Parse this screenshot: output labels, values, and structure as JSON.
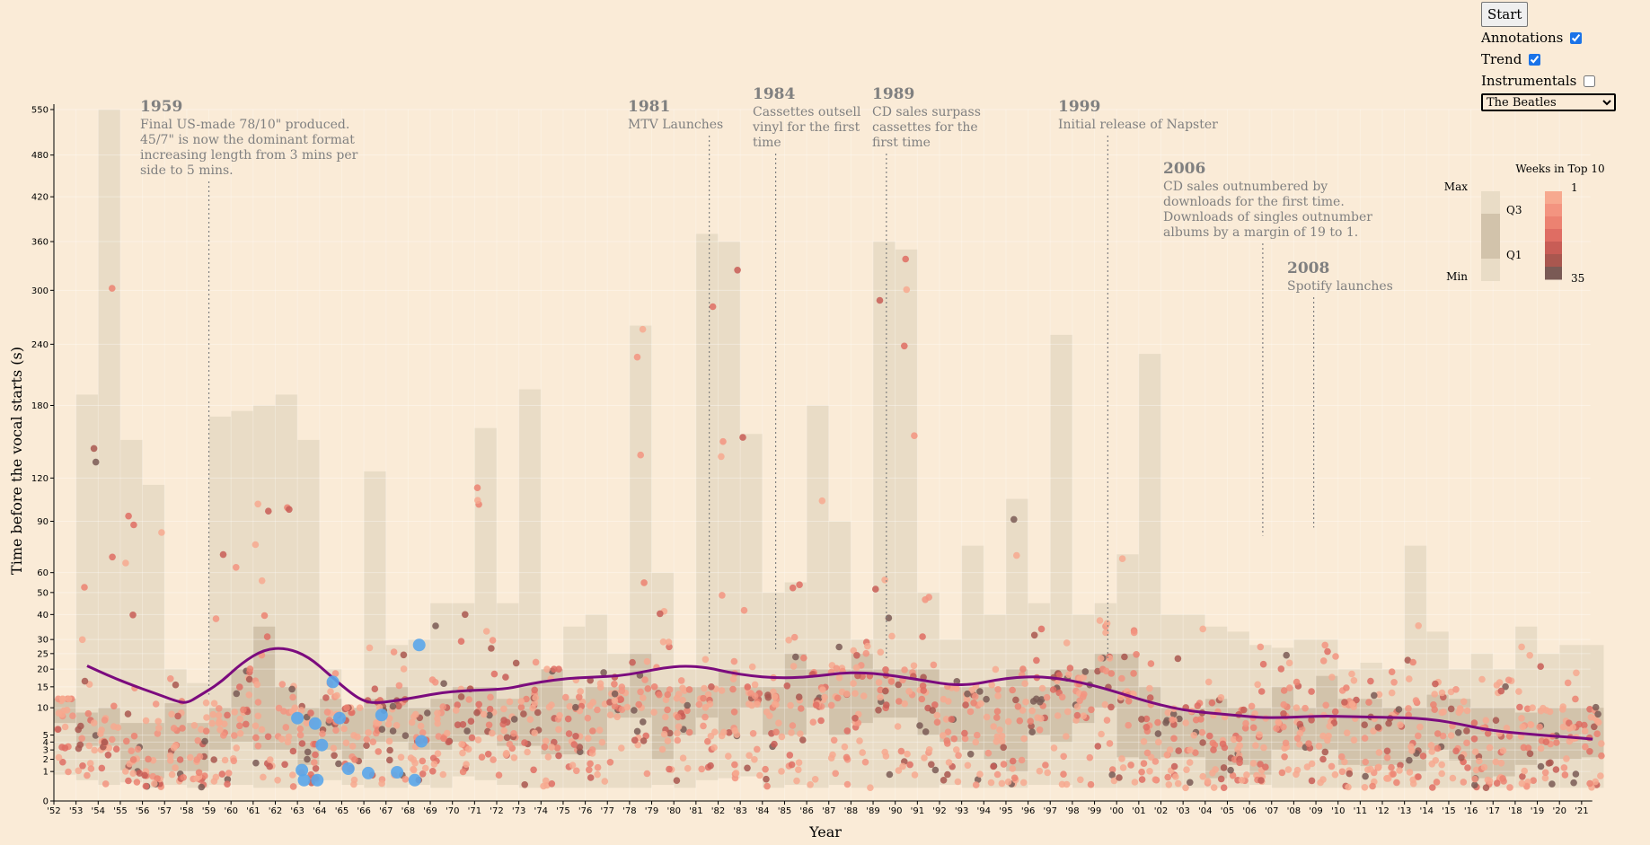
{
  "controls": {
    "start_label": "Start",
    "annotations_label": "Annotations",
    "annotations_checked": true,
    "trend_label": "Trend",
    "trend_checked": true,
    "instrumentals_label": "Instrumentals",
    "instrumentals_checked": false,
    "artist_selected": "The Beatles"
  },
  "chart_data": {
    "type": "scatter",
    "xlabel": "Year",
    "ylabel": "Time before the vocal starts (s)",
    "y_scale": "sqrt",
    "ylim": [
      0,
      550
    ],
    "xlim": [
      1952,
      2022
    ],
    "x_tick_labels": [
      "'52",
      "'53",
      "'54",
      "'55",
      "'56",
      "'57",
      "'58",
      "'59",
      "'60",
      "'61",
      "'62",
      "'63",
      "'64",
      "'65",
      "'66",
      "'67",
      "'68",
      "'69",
      "'70",
      "'71",
      "'72",
      "'73",
      "'74",
      "'75",
      "'76",
      "'77",
      "'78",
      "'79",
      "'80",
      "'81",
      "'82",
      "'83",
      "'84",
      "'85",
      "'86",
      "'87",
      "'88",
      "'89",
      "'90",
      "'91",
      "'92",
      "'93",
      "'94",
      "'95",
      "'96",
      "'97",
      "'98",
      "'99",
      "'00",
      "'01",
      "'02",
      "'03",
      "'04",
      "'05",
      "'06",
      "'07",
      "'08",
      "'09",
      "'10",
      "'11",
      "'12",
      "'13",
      "'14",
      "'15",
      "'16",
      "'17",
      "'18",
      "'19",
      "'20",
      "'21"
    ],
    "y_ticks": [
      0,
      1,
      2,
      3,
      4,
      5,
      10,
      15,
      20,
      25,
      30,
      40,
      50,
      60,
      90,
      120,
      180,
      240,
      300,
      360,
      420,
      480,
      550
    ],
    "colors": {
      "box_range": "#e9dcc6",
      "box_iqr": "#d2c3ab",
      "trend": "#7b0b7e",
      "point_light": "#f4a582",
      "point_mid": "#e35f4c",
      "point_dark": "#8c4b4b",
      "highlight": "#5aa6ea"
    },
    "boxes": [
      {
        "year": 1952,
        "min": 0.8,
        "q1": 7,
        "q3": 12,
        "max": 12
      },
      {
        "year": 1953,
        "min": 0.5,
        "q1": 3.5,
        "q3": 9,
        "max": 190
      },
      {
        "year": 1954,
        "min": 0.3,
        "q1": 3.5,
        "q3": 10,
        "max": 550
      },
      {
        "year": 1955,
        "min": 0.4,
        "q1": 1.1,
        "q3": 7,
        "max": 150
      },
      {
        "year": 1956,
        "min": 0.2,
        "q1": 0.6,
        "q3": 7,
        "max": 115
      },
      {
        "year": 1957,
        "min": 0.3,
        "q1": 1,
        "q3": 11,
        "max": 20
      },
      {
        "year": 1958,
        "min": 0.2,
        "q1": 1,
        "q3": 7,
        "max": 16
      },
      {
        "year": 1959,
        "min": 0.3,
        "q1": 3,
        "q3": 10,
        "max": 170
      },
      {
        "year": 1960,
        "min": 0.3,
        "q1": 4,
        "q3": 20,
        "max": 175
      },
      {
        "year": 1961,
        "min": 0.2,
        "q1": 3,
        "q3": 35,
        "max": 180
      },
      {
        "year": 1962,
        "min": 0.2,
        "q1": 3,
        "q3": 15,
        "max": 190
      },
      {
        "year": 1963,
        "min": 0.3,
        "q1": 1.5,
        "q3": 10,
        "max": 150
      },
      {
        "year": 1964,
        "min": 0.5,
        "q1": 3,
        "q3": 12,
        "max": 20
      },
      {
        "year": 1965,
        "min": 0.3,
        "q1": 2,
        "q3": 10,
        "max": 10
      },
      {
        "year": 1966,
        "min": 0.2,
        "q1": 4,
        "q3": 12,
        "max": 125
      },
      {
        "year": 1967,
        "min": 0.2,
        "q1": 4,
        "q3": 15,
        "max": 28
      },
      {
        "year": 1968,
        "min": 0.3,
        "q1": 3,
        "q3": 10,
        "max": 30
      },
      {
        "year": 1969,
        "min": 0.2,
        "q1": 3,
        "q3": 12,
        "max": 45
      },
      {
        "year": 1970,
        "min": 0.7,
        "q1": 4,
        "q3": 15,
        "max": 45
      },
      {
        "year": 1971,
        "min": 0.5,
        "q1": 5,
        "q3": 15,
        "max": 160
      },
      {
        "year": 1972,
        "min": 0.3,
        "q1": 3.5,
        "q3": 12,
        "max": 45
      },
      {
        "year": 1973,
        "min": 0.2,
        "q1": 3.5,
        "q3": 16,
        "max": 195
      },
      {
        "year": 1974,
        "min": 0.2,
        "q1": 2.5,
        "q3": 20,
        "max": 20
      },
      {
        "year": 1975,
        "min": 0.2,
        "q1": 2.5,
        "q3": 12,
        "max": 35
      },
      {
        "year": 1976,
        "min": 0.2,
        "q1": 3,
        "q3": 15,
        "max": 40
      },
      {
        "year": 1977,
        "min": 0.2,
        "q1": 8,
        "q3": 15,
        "max": 25
      },
      {
        "year": 1978,
        "min": 0.2,
        "q1": 8,
        "q3": 25,
        "max": 260
      },
      {
        "year": 1979,
        "min": 0.3,
        "q1": 2,
        "q3": 15,
        "max": 60
      },
      {
        "year": 1980,
        "min": 0.2,
        "q1": 5,
        "q3": 15,
        "max": 20
      },
      {
        "year": 1981,
        "min": 0.5,
        "q1": 8,
        "q3": 15,
        "max": 370
      },
      {
        "year": 1982,
        "min": 0.6,
        "q1": 5,
        "q3": 20,
        "max": 360
      },
      {
        "year": 1983,
        "min": 0.7,
        "q1": 10,
        "q3": 15,
        "max": 155
      },
      {
        "year": 1984,
        "min": 0.2,
        "q1": 5,
        "q3": 15,
        "max": 50
      },
      {
        "year": 1985,
        "min": 0.3,
        "q1": 5,
        "q3": 25,
        "max": 55
      },
      {
        "year": 1986,
        "min": 0.2,
        "q1": 10,
        "q3": 20,
        "max": 180
      },
      {
        "year": 1987,
        "min": 0.3,
        "q1": 5,
        "q3": 20,
        "max": 90
      },
      {
        "year": 1988,
        "min": 0.2,
        "q1": 7,
        "q3": 25,
        "max": 30
      },
      {
        "year": 1989,
        "min": 0.2,
        "q1": 8,
        "q3": 20,
        "max": 360
      },
      {
        "year": 1990,
        "min": 0.2,
        "q1": 8,
        "q3": 20,
        "max": 350
      },
      {
        "year": 1991,
        "min": 0.2,
        "q1": 5,
        "q3": 20,
        "max": 50
      },
      {
        "year": 1992,
        "min": 0.3,
        "q1": 4,
        "q3": 15,
        "max": 30
      },
      {
        "year": 1993,
        "min": 0.2,
        "q1": 3,
        "q3": 15,
        "max": 75
      },
      {
        "year": 1994,
        "min": 0.2,
        "q1": 2,
        "q3": 15,
        "max": 40
      },
      {
        "year": 1995,
        "min": 0.2,
        "q1": 1,
        "q3": 20,
        "max": 105
      },
      {
        "year": 1996,
        "min": 0.3,
        "q1": 5,
        "q3": 15,
        "max": 45
      },
      {
        "year": 1997,
        "min": 0.3,
        "q1": 4,
        "q3": 20,
        "max": 250
      },
      {
        "year": 1998,
        "min": 0.2,
        "q1": 7,
        "q3": 20,
        "max": 40
      },
      {
        "year": 1999,
        "min": 0.2,
        "q1": 10,
        "q3": 25,
        "max": 45
      },
      {
        "year": 2000,
        "min": 0.2,
        "q1": 2.2,
        "q3": 25,
        "max": 70
      },
      {
        "year": 2001,
        "min": 0.2,
        "q1": 2,
        "q3": 15,
        "max": 230
      },
      {
        "year": 2002,
        "min": 0.2,
        "q1": 2.2,
        "q3": 10,
        "max": 40
      },
      {
        "year": 2003,
        "min": 0.2,
        "q1": 2.2,
        "q3": 10,
        "max": 40
      },
      {
        "year": 2004,
        "min": 0.2,
        "q1": 0.6,
        "q3": 12,
        "max": 35
      },
      {
        "year": 2005,
        "min": 0.2,
        "q1": 1.5,
        "q3": 10,
        "max": 33
      },
      {
        "year": 2006,
        "min": 0.3,
        "q1": 0.8,
        "q3": 10,
        "max": 28
      },
      {
        "year": 2007,
        "min": 0.2,
        "q1": 3,
        "q3": 15,
        "max": 27
      },
      {
        "year": 2008,
        "min": 0.2,
        "q1": 3,
        "q3": 10,
        "max": 30
      },
      {
        "year": 2009,
        "min": 0.2,
        "q1": 3,
        "q3": 18,
        "max": 30
      },
      {
        "year": 2010,
        "min": 0.2,
        "q1": 1.5,
        "q3": 12,
        "max": 20
      },
      {
        "year": 2011,
        "min": 0.2,
        "q1": 1.4,
        "q3": 12,
        "max": 22
      },
      {
        "year": 2012,
        "min": 0.2,
        "q1": 1.5,
        "q3": 10,
        "max": 20
      },
      {
        "year": 2013,
        "min": 0.2,
        "q1": 1,
        "q3": 10,
        "max": 75
      },
      {
        "year": 2014,
        "min": 0.2,
        "q1": 3,
        "q3": 13,
        "max": 33
      },
      {
        "year": 2015,
        "min": 0.2,
        "q1": 1.9,
        "q3": 12,
        "max": 20
      },
      {
        "year": 2016,
        "min": 0.2,
        "q1": 0.6,
        "q3": 10,
        "max": 25
      },
      {
        "year": 2017,
        "min": 0.2,
        "q1": 0.7,
        "q3": 10,
        "max": 20
      },
      {
        "year": 2018,
        "min": 0.2,
        "q1": 1.5,
        "q3": 9,
        "max": 35
      },
      {
        "year": 2019,
        "min": 0.2,
        "q1": 2,
        "q3": 10,
        "max": 25
      },
      {
        "year": 2020,
        "min": 0.2,
        "q1": 2,
        "q3": 10,
        "max": 28
      },
      {
        "year": 2021,
        "min": 0.2,
        "q1": 2.2,
        "q3": 10,
        "max": 28
      }
    ],
    "trend": [
      [
        1953,
        21
      ],
      [
        1954,
        18
      ],
      [
        1955,
        15.5
      ],
      [
        1956,
        13.5
      ],
      [
        1957,
        11.5
      ],
      [
        1957.5,
        11
      ],
      [
        1958,
        12.5
      ],
      [
        1959,
        16
      ],
      [
        1960,
        22
      ],
      [
        1961,
        26.5
      ],
      [
        1962,
        27
      ],
      [
        1963,
        24
      ],
      [
        1964,
        18
      ],
      [
        1965,
        13
      ],
      [
        1965.5,
        11.5
      ],
      [
        1966,
        11
      ],
      [
        1967,
        11.6
      ],
      [
        1968,
        12.5
      ],
      [
        1969,
        13.5
      ],
      [
        1970,
        14
      ],
      [
        1971,
        14.2
      ],
      [
        1972,
        14.5
      ],
      [
        1973,
        15.8
      ],
      [
        1974,
        16.8
      ],
      [
        1975,
        17.4
      ],
      [
        1976,
        17.7
      ],
      [
        1977,
        18
      ],
      [
        1978,
        19
      ],
      [
        1979,
        20.4
      ],
      [
        1980,
        21
      ],
      [
        1981,
        20.5
      ],
      [
        1982,
        19
      ],
      [
        1983,
        18
      ],
      [
        1984,
        17.5
      ],
      [
        1985,
        17.5
      ],
      [
        1986,
        18
      ],
      [
        1987,
        18.8
      ],
      [
        1988,
        19
      ],
      [
        1989,
        18.4
      ],
      [
        1990,
        17.5
      ],
      [
        1991,
        16.5
      ],
      [
        1992,
        15.5
      ],
      [
        1993,
        15.6
      ],
      [
        1994,
        16.8
      ],
      [
        1995,
        17.6
      ],
      [
        1996,
        17.8
      ],
      [
        1997,
        17.2
      ],
      [
        1998,
        16
      ],
      [
        1999,
        14.5
      ],
      [
        2000,
        12.8
      ],
      [
        2001,
        11.2
      ],
      [
        2002,
        10
      ],
      [
        2003,
        9.2
      ],
      [
        2004,
        8.8
      ],
      [
        2005,
        8.4
      ],
      [
        2006,
        8
      ],
      [
        2007,
        8
      ],
      [
        2008,
        8.2
      ],
      [
        2009,
        8.3
      ],
      [
        2010,
        8.2
      ],
      [
        2011,
        8.1
      ],
      [
        2012,
        8
      ],
      [
        2013,
        7.9
      ],
      [
        2014,
        7.5
      ],
      [
        2015,
        6.8
      ],
      [
        2016,
        6
      ],
      [
        2017,
        5.5
      ],
      [
        2018,
        5.2
      ],
      [
        2019,
        4.9
      ],
      [
        2020,
        4.7
      ],
      [
        2021,
        4.4
      ]
    ],
    "highlight_points": [
      [
        1963.0,
        7.9
      ],
      [
        1963.8,
        6.9
      ],
      [
        1964.6,
        16.3
      ],
      [
        1964.9,
        7.9
      ],
      [
        1966.8,
        8.5
      ],
      [
        1968.5,
        28
      ],
      [
        1968.6,
        4.1
      ],
      [
        1964.1,
        3.6
      ],
      [
        1965.3,
        1.2
      ],
      [
        1963.2,
        1.1
      ],
      [
        1966.2,
        0.9
      ],
      [
        1967.5,
        0.95
      ],
      [
        1963.3,
        0.5
      ],
      [
        1963.9,
        0.5
      ],
      [
        1968.3,
        0.5
      ]
    ],
    "annotations": [
      {
        "year": 1959,
        "x": 1959,
        "line_from": 13,
        "lines": [
          "Final US-made 78/10\" produced.",
          "45/7\" is now the dominant format",
          "increasing length from 3 mins per",
          "side to 5 mins."
        ]
      },
      {
        "year": 1981,
        "x": 1981.6,
        "line_from": 25,
        "lines": [
          "MTV Launches"
        ]
      },
      {
        "year": 1984,
        "x": 1984.6,
        "line_from": 26,
        "lines": [
          "Cassettes outsell",
          "vinyl for the first",
          "time"
        ]
      },
      {
        "year": 1989,
        "x": 1989.6,
        "line_from": 23,
        "lines": [
          "CD sales surpass",
          "cassettes for the",
          "first time"
        ]
      },
      {
        "year": 1999,
        "x": 1999.6,
        "line_from": 23,
        "lines": [
          "Initial release of Napster"
        ]
      },
      {
        "year": 2006,
        "x": 2006.6,
        "line_from": 81,
        "lines": [
          "CD sales outnumbered by",
          "downloads for the first time.",
          "Downloads of singles outnumber",
          "albums by a margin of 19 to 1."
        ]
      },
      {
        "year": 2008,
        "x": 2008.9,
        "line_from": 86,
        "lines": [
          "Spotify launches"
        ]
      }
    ],
    "legend": {
      "weeks_title": "Weeks in Top 10",
      "weeks_min": "1",
      "weeks_max": "35",
      "box_labels": [
        "Max",
        "Q3",
        "Q1",
        "Min"
      ],
      "weeks_colors": [
        "#f7a98f",
        "#f39480",
        "#ec8271",
        "#df6d63",
        "#c85d56",
        "#a9574f",
        "#7a5a55"
      ]
    }
  }
}
